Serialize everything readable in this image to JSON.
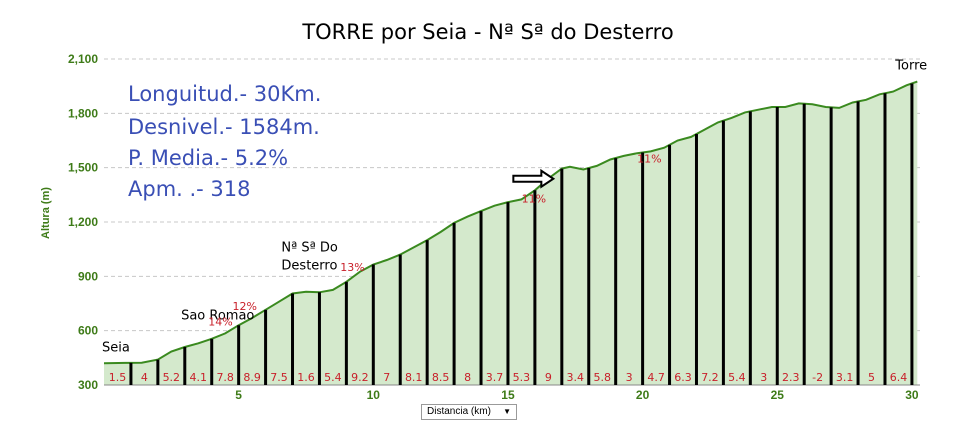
{
  "chart_data": {
    "type": "area",
    "title": "TORRE por Seia - Nª Sª do Desterro",
    "xlabel": "Distancia (km)",
    "ylabel": "Altura (m)",
    "xlim": [
      0,
      30.3
    ],
    "ylim": [
      300,
      2100
    ],
    "xticks": [
      5,
      10,
      15,
      20,
      25,
      30
    ],
    "yticks": [
      300,
      600,
      900,
      1200,
      1500,
      1800,
      2100
    ],
    "ytick_labels": [
      "300",
      "600",
      "900",
      "1,200",
      "1,500",
      "1,800",
      "2,100"
    ],
    "grid": "horizontal",
    "legend": "none",
    "colors": {
      "line": "#3a8a1f",
      "fill": "#d4e9cc",
      "grid": "#c8c8c8",
      "axis_text": "#3e7b18",
      "km_bar": "#000000",
      "grade_text": "#c8202a",
      "info_text": "#3a4fb5"
    },
    "profile": [
      {
        "x": 0.0,
        "y": 420
      },
      {
        "x": 0.8,
        "y": 422
      },
      {
        "x": 1.4,
        "y": 423
      },
      {
        "x": 2.0,
        "y": 440
      },
      {
        "x": 2.5,
        "y": 485
      },
      {
        "x": 3.0,
        "y": 510
      },
      {
        "x": 3.5,
        "y": 530
      },
      {
        "x": 4.0,
        "y": 555
      },
      {
        "x": 4.5,
        "y": 585
      },
      {
        "x": 5.0,
        "y": 630
      },
      {
        "x": 5.5,
        "y": 670
      },
      {
        "x": 6.0,
        "y": 715
      },
      {
        "x": 6.5,
        "y": 760
      },
      {
        "x": 7.0,
        "y": 805
      },
      {
        "x": 7.5,
        "y": 815
      },
      {
        "x": 8.0,
        "y": 812
      },
      {
        "x": 8.5,
        "y": 825
      },
      {
        "x": 9.0,
        "y": 870
      },
      {
        "x": 9.5,
        "y": 925
      },
      {
        "x": 10.0,
        "y": 965
      },
      {
        "x": 10.5,
        "y": 990
      },
      {
        "x": 11.0,
        "y": 1020
      },
      {
        "x": 11.5,
        "y": 1060
      },
      {
        "x": 12.0,
        "y": 1100
      },
      {
        "x": 12.5,
        "y": 1145
      },
      {
        "x": 13.0,
        "y": 1195
      },
      {
        "x": 13.5,
        "y": 1230
      },
      {
        "x": 14.0,
        "y": 1260
      },
      {
        "x": 14.5,
        "y": 1290
      },
      {
        "x": 15.0,
        "y": 1310
      },
      {
        "x": 15.5,
        "y": 1325
      },
      {
        "x": 16.0,
        "y": 1375
      },
      {
        "x": 16.5,
        "y": 1440
      },
      {
        "x": 17.0,
        "y": 1495
      },
      {
        "x": 17.3,
        "y": 1505
      },
      {
        "x": 17.8,
        "y": 1490
      },
      {
        "x": 18.3,
        "y": 1510
      },
      {
        "x": 18.8,
        "y": 1545
      },
      {
        "x": 19.3,
        "y": 1565
      },
      {
        "x": 19.8,
        "y": 1580
      },
      {
        "x": 20.3,
        "y": 1590
      },
      {
        "x": 20.8,
        "y": 1610
      },
      {
        "x": 21.3,
        "y": 1650
      },
      {
        "x": 21.8,
        "y": 1670
      },
      {
        "x": 22.3,
        "y": 1710
      },
      {
        "x": 22.8,
        "y": 1750
      },
      {
        "x": 23.3,
        "y": 1775
      },
      {
        "x": 23.8,
        "y": 1805
      },
      {
        "x": 24.3,
        "y": 1820
      },
      {
        "x": 24.8,
        "y": 1835
      },
      {
        "x": 25.3,
        "y": 1835
      },
      {
        "x": 25.8,
        "y": 1855
      },
      {
        "x": 26.3,
        "y": 1850
      },
      {
        "x": 26.8,
        "y": 1835
      },
      {
        "x": 27.3,
        "y": 1830
      },
      {
        "x": 27.8,
        "y": 1860
      },
      {
        "x": 28.3,
        "y": 1875
      },
      {
        "x": 28.8,
        "y": 1905
      },
      {
        "x": 29.3,
        "y": 1920
      },
      {
        "x": 29.8,
        "y": 1955
      },
      {
        "x": 30.2,
        "y": 1975
      }
    ],
    "km_grades": [
      "1.5",
      "4",
      "5.2",
      "4.1",
      "7.8",
      "8.9",
      "7.5",
      "1.6",
      "5.4",
      "9.2",
      "7",
      "8.1",
      "8.5",
      "8",
      "3.7",
      "5.3",
      "9",
      "3.4",
      "5.8",
      "3",
      "4.7",
      "6.3",
      "7.2",
      "5.4",
      "3",
      "2.3",
      "-2",
      "3.1",
      "5",
      "6.4"
    ],
    "annotations": {
      "places": [
        {
          "text": "Seia",
          "x": 0.0,
          "y": 420
        },
        {
          "text": "Sao Romao",
          "x": 4.2,
          "y": 585
        },
        {
          "text": "Nª Sª Do",
          "x": 6.7,
          "y": 790
        },
        {
          "text": "Desterro",
          "x": 6.7,
          "y": 790
        },
        {
          "text": "Torre",
          "x": 30.2,
          "y": 1975
        }
      ],
      "steep_grades": [
        {
          "text": "14%",
          "x": 4.4,
          "y": 585
        },
        {
          "text": "12%",
          "x": 5.3,
          "y": 630
        },
        {
          "text": "13%",
          "x": 9.3,
          "y": 870
        },
        {
          "text": "11%",
          "x": 16.0,
          "y": 1375
        },
        {
          "text": "11%",
          "x": 20.4,
          "y": 1590
        }
      ],
      "arrow": {
        "x": 15.2,
        "y": 1505
      }
    }
  },
  "info_box": {
    "length": "Longuitud.- 30Km.",
    "elevation_gain": "Desnivel.-  1584m.",
    "average_grade": "P. Media.- 5.2%",
    "apm": "Apm.  .- 318"
  },
  "x_axis_selector": {
    "label": "Distancia (km)",
    "caret": "▼"
  }
}
